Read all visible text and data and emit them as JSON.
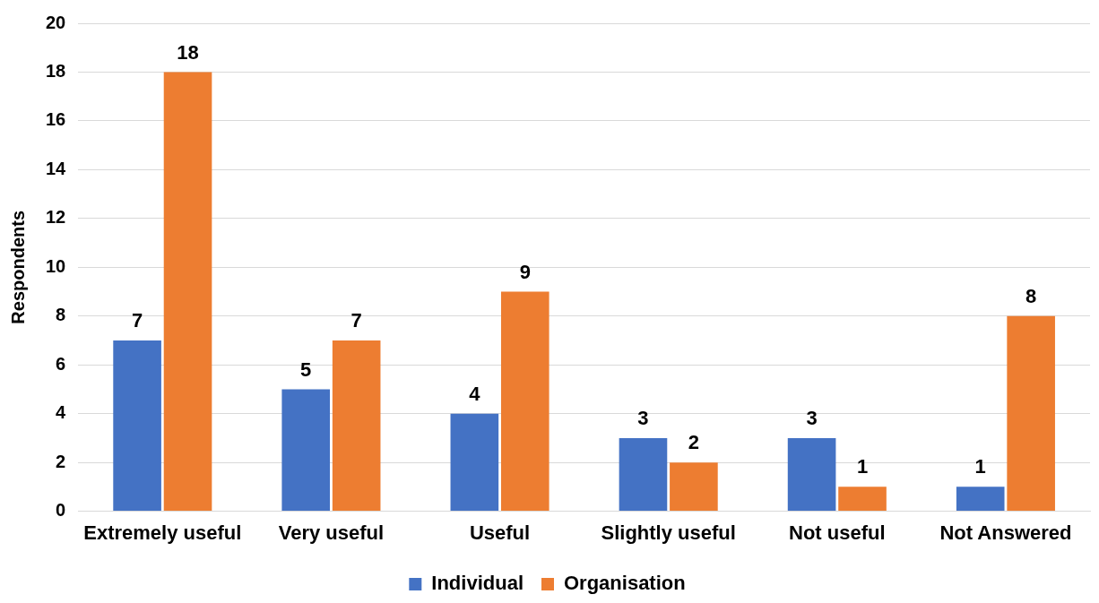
{
  "chart_data": {
    "type": "bar",
    "ylabel": "Respondents",
    "categories": [
      "Extremely useful",
      "Very useful",
      "Useful",
      "Slightly useful",
      "Not useful",
      "Not Answered"
    ],
    "series": [
      {
        "name": "Individual",
        "color": "#4472c4",
        "values": [
          7,
          5,
          4,
          3,
          3,
          1
        ]
      },
      {
        "name": "Organisation",
        "color": "#ed7d31",
        "values": [
          18,
          7,
          9,
          2,
          1,
          8
        ]
      }
    ],
    "ylim": [
      0,
      20
    ],
    "yticks": [
      0,
      2,
      4,
      6,
      8,
      10,
      12,
      14,
      16,
      18,
      20
    ],
    "grid": "y",
    "legend": "bottom",
    "data_labels": true
  }
}
